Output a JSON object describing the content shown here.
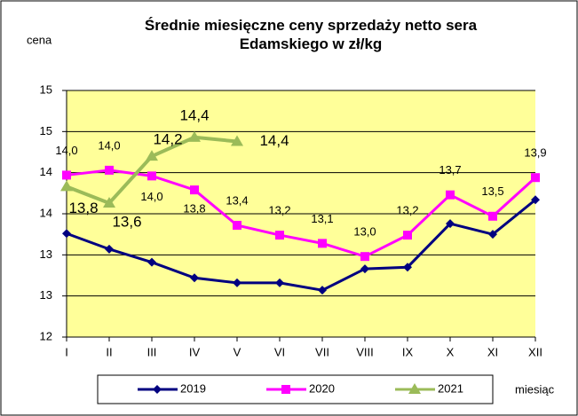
{
  "chart_data": {
    "type": "line",
    "title": "Średnie miesięczne ceny sprzedaży netto sera Edamskiego w zł/kg",
    "y_label": "cena",
    "x_label": "miesiąc",
    "categories": [
      "I",
      "II",
      "III",
      "IV",
      "V",
      "VI",
      "VII",
      "VIII",
      "IX",
      "X",
      "XI",
      "XII"
    ],
    "ylim": [
      12,
      15
    ],
    "yticks": [
      12,
      {
        "value": 12.5,
        "label": "13"
      },
      13,
      {
        "value": 13.5,
        "label": "14"
      },
      14,
      {
        "value": 14.5,
        "label": "15"
      },
      15
    ],
    "grid": true,
    "legend": "bottom",
    "series": [
      {
        "name": "2019",
        "color": "#000080",
        "marker": "diamond",
        "values": [
          13.26,
          13.07,
          12.91,
          12.72,
          12.66,
          12.66,
          12.57,
          12.83,
          12.85,
          13.38,
          13.25,
          13.67
        ]
      },
      {
        "name": "2020",
        "color": "#ff00ff",
        "marker": "square",
        "values": [
          13.97,
          14.03,
          13.96,
          13.79,
          13.36,
          13.24,
          13.14,
          12.98,
          13.24,
          13.73,
          13.47,
          13.94
        ],
        "value_labels": [
          "14,0",
          "14,0",
          "14,0",
          "13,8",
          "13,4",
          "13,2",
          "13,1",
          "13,0",
          "13,2",
          "13,7",
          "13,5",
          "13,9"
        ]
      },
      {
        "name": "2021",
        "color": "#9bbb59",
        "marker": "triangle",
        "values": [
          13.83,
          13.63,
          14.2,
          14.43,
          14.38,
          null,
          null,
          null,
          null,
          null,
          null,
          null
        ],
        "value_labels": [
          "13,8",
          "13,6",
          "14,2",
          "14,4",
          "14,4",
          null,
          null,
          null,
          null,
          null,
          null,
          null
        ]
      }
    ]
  }
}
